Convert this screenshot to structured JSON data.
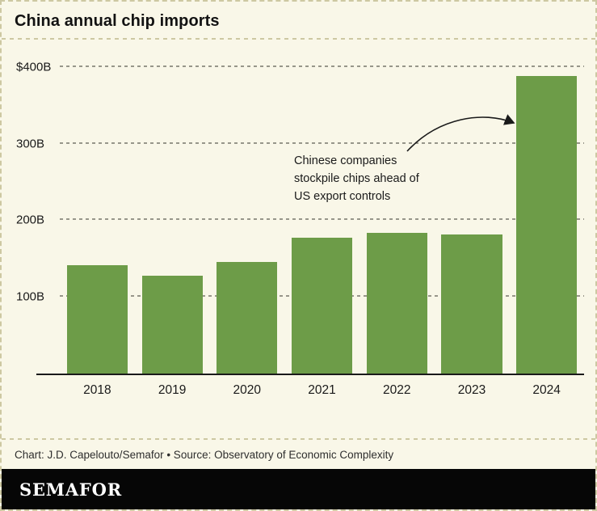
{
  "header": {
    "title": "China annual chip imports"
  },
  "chart_data": {
    "type": "bar",
    "title": "China annual chip imports",
    "categories": [
      "2018",
      "2019",
      "2020",
      "2021",
      "2022",
      "2023",
      "2024"
    ],
    "values": [
      141,
      128,
      146,
      177,
      184,
      181,
      388
    ],
    "unit": "billion USD",
    "xlabel": "",
    "ylabel": "",
    "ylim": [
      0,
      425
    ],
    "yticks": [
      {
        "value": 100,
        "label": "100B"
      },
      {
        "value": 200,
        "label": "200B"
      },
      {
        "value": 300,
        "label": "300B"
      },
      {
        "value": 400,
        "label": "$400B"
      }
    ],
    "grid": "dashed-horizontal",
    "legend": "none",
    "bar_color": "#6d9c48",
    "annotation": "Chinese companies stockpile chips ahead of US export controls",
    "annotation_lines": [
      "Chinese companies",
      "stockpile chips ahead of",
      "US export controls"
    ],
    "annotation_target": "2024"
  },
  "footer": {
    "caption": "Chart: J.D. Capelouto/Semafor • Source: Observatory of Economic Complexity",
    "brand": "SEMAFOR"
  },
  "colors": {
    "background": "#f9f7e8",
    "dashed_line": "#cdc8a2",
    "gridline": "#97968a",
    "bar": "#6d9c48",
    "axis": "#1a1a1a",
    "brand_bar": "#060606",
    "brand_text": "#ffffff"
  }
}
